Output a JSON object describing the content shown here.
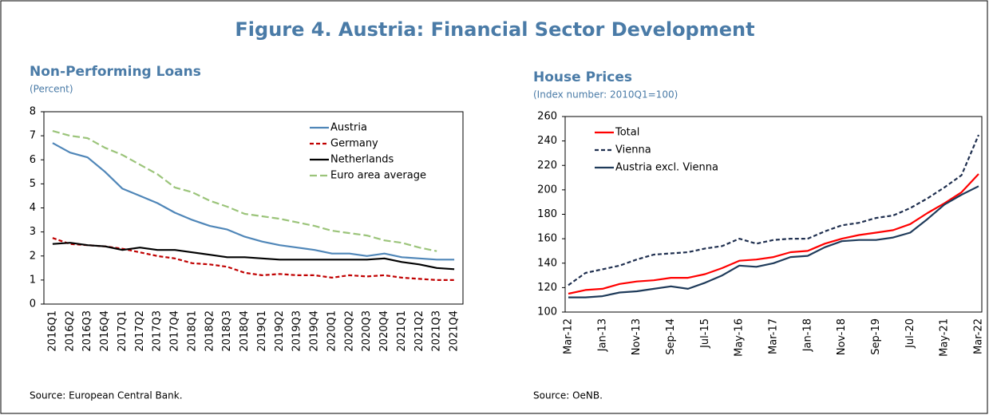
{
  "figure_title": "Figure 4. Austria: Financial Sector Development",
  "chart_data": [
    {
      "type": "line",
      "title": "Non-Performing Loans",
      "subtitle": "(Percent)",
      "source": "Source: European Central Bank.",
      "categories": [
        "2016Q1",
        "2016Q2",
        "2016Q3",
        "2016Q4",
        "2017Q1",
        "2017Q2",
        "2017Q3",
        "2017Q4",
        "2018Q1",
        "2018Q2",
        "2018Q3",
        "2018Q4",
        "2019Q1",
        "2019Q2",
        "2019Q3",
        "2019Q4",
        "2020Q1",
        "2020Q2",
        "2020Q3",
        "2020Q4",
        "2021Q1",
        "2021Q2",
        "2021Q3",
        "2021Q4"
      ],
      "series": [
        {
          "name": "Austria",
          "color": "#4f86b8",
          "style": "solid",
          "values": [
            6.7,
            6.3,
            6.1,
            5.5,
            4.8,
            4.5,
            4.2,
            3.8,
            3.5,
            3.25,
            3.1,
            2.8,
            2.6,
            2.45,
            2.35,
            2.25,
            2.1,
            2.1,
            2.0,
            2.1,
            1.95,
            1.9,
            1.85,
            1.85
          ]
        },
        {
          "name": "Germany",
          "color": "#c00000",
          "style": "dashed",
          "values": [
            2.75,
            2.5,
            2.45,
            2.4,
            2.3,
            2.15,
            2.0,
            1.9,
            1.7,
            1.65,
            1.55,
            1.3,
            1.2,
            1.25,
            1.2,
            1.2,
            1.1,
            1.2,
            1.15,
            1.2,
            1.1,
            1.05,
            1.0,
            1.0
          ]
        },
        {
          "name": "Netherlands",
          "color": "#000000",
          "style": "solid",
          "values": [
            2.5,
            2.55,
            2.45,
            2.4,
            2.25,
            2.35,
            2.25,
            2.25,
            2.15,
            2.05,
            1.95,
            1.95,
            1.9,
            1.85,
            1.85,
            1.85,
            1.85,
            1.85,
            1.85,
            1.9,
            1.75,
            1.65,
            1.5,
            1.45
          ]
        },
        {
          "name": "Euro area average",
          "color": "#9bc47a",
          "style": "long-dashed",
          "values": [
            7.2,
            7.0,
            6.9,
            6.5,
            6.2,
            5.8,
            5.4,
            4.85,
            4.65,
            4.3,
            4.05,
            3.75,
            3.65,
            3.55,
            3.4,
            3.25,
            3.05,
            2.95,
            2.85,
            2.65,
            2.55,
            2.35,
            2.2,
            null
          ]
        }
      ],
      "ylim": [
        0,
        8
      ],
      "yticks": [
        0,
        1,
        2,
        3,
        4,
        5,
        6,
        7,
        8
      ],
      "grid": false,
      "legend": "upper right"
    },
    {
      "type": "line",
      "title": "House Prices",
      "subtitle": "(Index number: 2010Q1=100)",
      "source": "Source: OeNB.",
      "categories": [
        "Mar-12",
        null,
        "Jan-13",
        null,
        "Nov-13",
        null,
        "Sep-14",
        null,
        "Jul-15",
        null,
        "May-16",
        null,
        "Mar-17",
        null,
        "Jan-18",
        null,
        "Nov-18",
        null,
        "Sep-19",
        null,
        "Jul-20",
        null,
        "May-21",
        null,
        "Mar-22"
      ],
      "series": [
        {
          "name": "Total",
          "color": "#ff0000",
          "style": "solid",
          "values": [
            115,
            118,
            119,
            123,
            125,
            126,
            128,
            128,
            131,
            136,
            142,
            143,
            145,
            149,
            150,
            156,
            160,
            163,
            165,
            167,
            172,
            181,
            189,
            198,
            213
          ]
        },
        {
          "name": "Vienna",
          "color": "#1f2f4f",
          "style": "dashed",
          "values": [
            122,
            132,
            135,
            138,
            143,
            147,
            148,
            149,
            152,
            154,
            160,
            156,
            159,
            160,
            160,
            166,
            171,
            173,
            177,
            179,
            185,
            193,
            202,
            212,
            245
          ]
        },
        {
          "name": "Austria excl. Vienna",
          "color": "#1f3b5a",
          "style": "solid",
          "values": [
            112,
            112,
            113,
            116,
            117,
            119,
            121,
            119,
            124,
            130,
            138,
            137,
            140,
            145,
            146,
            153,
            158,
            159,
            159,
            161,
            165,
            176,
            188,
            196,
            203
          ]
        }
      ],
      "ylim": [
        100,
        260
      ],
      "yticks": [
        100,
        120,
        140,
        160,
        180,
        200,
        220,
        240,
        260
      ],
      "grid": false,
      "legend": "upper left"
    }
  ]
}
